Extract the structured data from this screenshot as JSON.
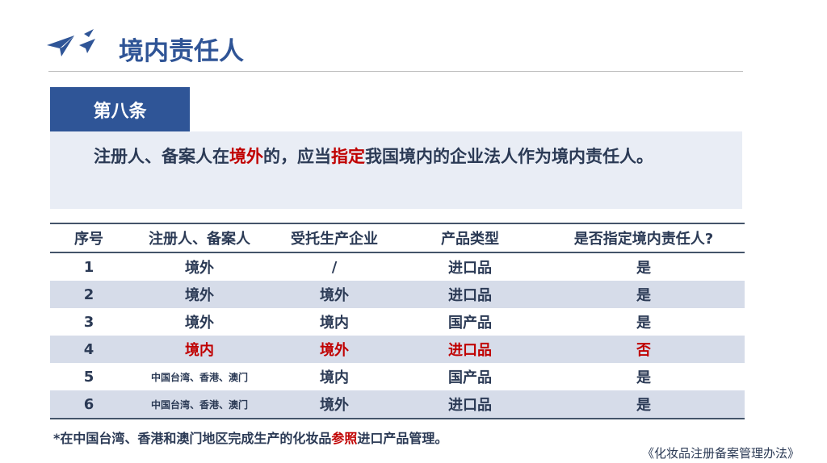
{
  "title": "境内责任人",
  "article": "第八条",
  "paragraph": {
    "p1": "注册人、备案人在",
    "p2": "境外",
    "p3": "的，应当",
    "p4": "指定",
    "p5": "我国境内的企业法人作为境内责任人。"
  },
  "table": {
    "headers": [
      "序号",
      "注册人、备案人",
      "受托生产企业",
      "产品类型",
      "是否指定境内责任人?"
    ],
    "rows": [
      [
        "1",
        "境外",
        "/",
        "进口品",
        "是"
      ],
      [
        "2",
        "境外",
        "境外",
        "进口品",
        "是"
      ],
      [
        "3",
        "境外",
        "境内",
        "国产品",
        "是"
      ],
      [
        "4",
        "境内",
        "境外",
        "进口品",
        "否"
      ],
      [
        "5",
        "中国台湾、香港、澳门",
        "境内",
        "国产品",
        "是"
      ],
      [
        "6",
        "中国台湾、香港、澳门",
        "境外",
        "进口品",
        "是"
      ]
    ]
  },
  "note": {
    "n1": "*在中国台湾、香港和澳门地区完成生产的化妆品",
    "n2": "参照",
    "n3": "进口产品管理。"
  },
  "source": "《化妆品注册备案管理办法》",
  "colors": {
    "accent": "#2f5597",
    "highlight": "#c00000"
  }
}
